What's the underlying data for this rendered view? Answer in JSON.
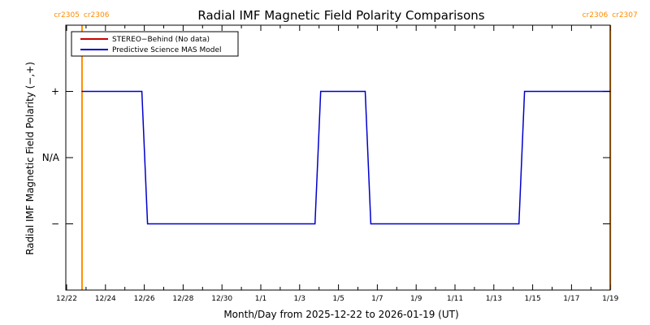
{
  "chart_data": {
    "type": "line",
    "title": "Radial IMF Magnetic Field Polarity Comparisons",
    "xlabel": "Month/Day from 2025-12-22 to 2026-01-19 (UT)",
    "ylabel": "Radial IMF Magnetic Field Polarity (−,+)",
    "x_range": [
      "2025-12-22",
      "2026-01-19"
    ],
    "ylim": [
      -2,
      2
    ],
    "y_ticks": [
      {
        "value": 1,
        "label": "+"
      },
      {
        "value": 0,
        "label": "N/A"
      },
      {
        "value": -1,
        "label": "−"
      }
    ],
    "x_ticks": [
      {
        "date": "2025-12-22",
        "label": "12/22"
      },
      {
        "date": "2025-12-24",
        "label": "12/24"
      },
      {
        "date": "2025-12-26",
        "label": "12/26"
      },
      {
        "date": "2025-12-28",
        "label": "12/28"
      },
      {
        "date": "2025-12-30",
        "label": "12/30"
      },
      {
        "date": "2026-01-01",
        "label": "1/1"
      },
      {
        "date": "2026-01-03",
        "label": "1/3"
      },
      {
        "date": "2026-01-05",
        "label": "1/5"
      },
      {
        "date": "2026-01-07",
        "label": "1/7"
      },
      {
        "date": "2026-01-09",
        "label": "1/9"
      },
      {
        "date": "2026-01-11",
        "label": "1/11"
      },
      {
        "date": "2026-01-13",
        "label": "1/13"
      },
      {
        "date": "2026-01-15",
        "label": "1/15"
      },
      {
        "date": "2026-01-17",
        "label": "1/17"
      },
      {
        "date": "2026-01-19",
        "label": "1/19"
      }
    ],
    "legend": {
      "placement": "top-left",
      "entries": [
        {
          "label": "STEREO−Behind (No data)",
          "color": "#cc0000"
        },
        {
          "label": "Predictive Science MAS Model",
          "color": "#0000cc"
        }
      ]
    },
    "series": [
      {
        "name": "Predictive Science MAS Model",
        "color": "#0000cc",
        "points": [
          [
            "2025-12-22T19:00",
            1
          ],
          [
            "2025-12-25T21:00",
            1
          ],
          [
            "2025-12-26T04:00",
            -1
          ],
          [
            "2026-01-03T19:00",
            -1
          ],
          [
            "2026-01-04T02:00",
            1
          ],
          [
            "2026-01-06T09:00",
            1
          ],
          [
            "2026-01-06T16:00",
            -1
          ],
          [
            "2026-01-14T07:00",
            -1
          ],
          [
            "2026-01-14T14:00",
            1
          ],
          [
            "2026-01-19T00:00",
            1
          ]
        ]
      }
    ],
    "carrington_markers": [
      {
        "date": "2025-12-22T19:00",
        "left_label": "cr2305",
        "right_label": "cr2306",
        "color": "#ff8c00"
      },
      {
        "date": "2026-01-19T00:00",
        "left_label": "cr2306",
        "right_label": "cr2307",
        "color": "#ff8c00"
      }
    ]
  }
}
